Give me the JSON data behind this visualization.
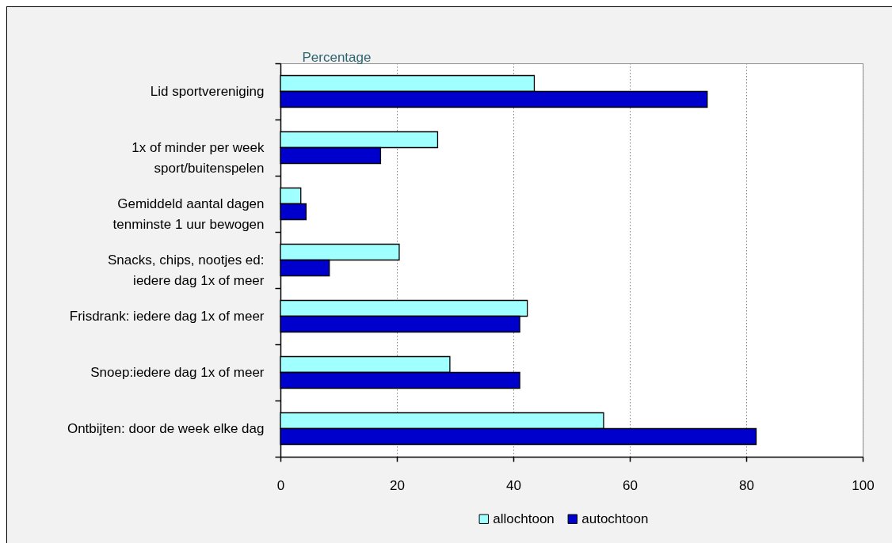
{
  "chart_data": {
    "type": "bar",
    "orientation": "horizontal",
    "xlabel": "Percentage",
    "categories": [
      "Lid sportvereniging",
      "1x of minder per week\nsport/buitenspelen",
      "Gemiddeld aantal dagen\ntenminste 1 uur bewogen",
      "Snacks, chips, nootjes ed:\niedere dag 1x of meer",
      "Frisdrank: iedere dag 1x of meer",
      "Snoep:iedere dag 1x of meer",
      "Ontbijten: door de week elke dag"
    ],
    "series": [
      {
        "name": "allochtoon",
        "color": "#a0ffff",
        "values": [
          43.6,
          27.0,
          3.5,
          20.4,
          42.4,
          29.1,
          55.5
        ]
      },
      {
        "name": "autochtoon",
        "color": "#0000cc",
        "values": [
          73.3,
          17.2,
          4.4,
          8.4,
          41.1,
          41.1,
          81.7
        ]
      }
    ],
    "xlim": [
      0,
      100
    ],
    "xticks": [
      0,
      20,
      40,
      60,
      80,
      100
    ],
    "grid": "x",
    "legend": "bottom"
  }
}
